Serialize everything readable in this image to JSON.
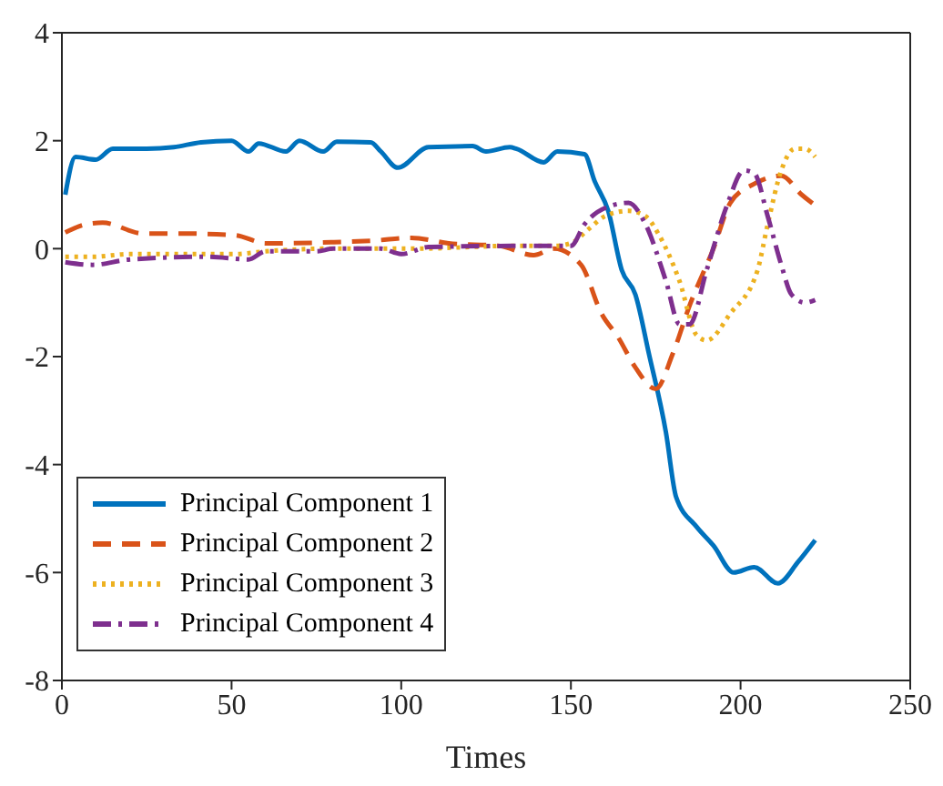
{
  "chart_data": {
    "type": "line",
    "xlabel": "Times",
    "xlim": [
      0,
      250
    ],
    "xticks": [
      0,
      50,
      100,
      150,
      200,
      250
    ],
    "ylim": [
      -8,
      4
    ],
    "yticks": [
      -8,
      -6,
      -4,
      -2,
      0,
      2,
      4
    ],
    "legend": "bottom left",
    "marker": "none",
    "series": [
      {
        "name": "Principal Component 1",
        "color": "#0072bd",
        "line_style": "solid",
        "x": [
          1,
          4,
          10,
          15,
          25,
          33,
          41,
          50,
          55,
          58,
          66,
          70,
          77,
          81,
          91,
          94,
          99,
          108,
          121,
          125,
          132,
          134,
          142,
          146,
          154,
          157,
          161,
          165,
          169,
          173,
          178,
          181,
          187,
          192,
          198,
          204,
          211,
          217,
          222
        ],
        "values": [
          1.0,
          1.7,
          1.65,
          1.85,
          1.85,
          1.88,
          1.97,
          2.0,
          1.8,
          1.95,
          1.8,
          2.0,
          1.8,
          1.98,
          1.97,
          1.8,
          1.5,
          1.88,
          1.9,
          1.8,
          1.88,
          1.85,
          1.6,
          1.8,
          1.75,
          1.25,
          0.7,
          -0.4,
          -0.85,
          -1.95,
          -3.4,
          -4.6,
          -5.15,
          -5.5,
          -6.0,
          -5.9,
          -6.2,
          -5.8,
          -5.4
        ]
      },
      {
        "name": "Principal Component 2",
        "color": "#d95319",
        "line_style": "dashed",
        "x": [
          1,
          7,
          12,
          24,
          35,
          51,
          60,
          65,
          80,
          92,
          103,
          114,
          129,
          139,
          145,
          153,
          159,
          164,
          169,
          175,
          180,
          185,
          192,
          197,
          204,
          212,
          218,
          222
        ],
        "values": [
          0.3,
          0.45,
          0.48,
          0.28,
          0.28,
          0.25,
          0.1,
          0.1,
          0.12,
          0.15,
          0.2,
          0.1,
          0.05,
          -0.12,
          0.0,
          -0.3,
          -1.2,
          -1.65,
          -2.2,
          -2.6,
          -1.95,
          -1.05,
          0.0,
          0.85,
          1.2,
          1.35,
          1.0,
          0.8
        ]
      },
      {
        "name": "Principal Component 3",
        "color": "#edb120",
        "line_style": "dotted",
        "x": [
          1,
          9,
          20,
          51,
          60,
          78,
          104,
          132,
          145,
          150,
          155,
          160,
          167,
          172,
          176,
          182,
          187,
          190,
          197,
          205,
          208,
          212,
          216,
          219,
          222
        ],
        "values": [
          -0.15,
          -0.15,
          -0.1,
          -0.1,
          -0.05,
          0.0,
          0.0,
          0.05,
          0.05,
          0.1,
          0.35,
          0.6,
          0.7,
          0.6,
          0.25,
          -0.6,
          -1.6,
          -1.7,
          -1.2,
          -0.4,
          0.45,
          1.45,
          1.85,
          1.85,
          1.7
        ]
      },
      {
        "name": "Principal Component 4",
        "color": "#7e2f8e",
        "line_style": "dashdot",
        "x": [
          1,
          9,
          20,
          43,
          55,
          60,
          75,
          80,
          94,
          100,
          108,
          132,
          150,
          154,
          162,
          167,
          172,
          178,
          182,
          185,
          190,
          196,
          201,
          204,
          208,
          212,
          215,
          219,
          222
        ],
        "values": [
          -0.25,
          -0.3,
          -0.2,
          -0.15,
          -0.2,
          -0.05,
          -0.05,
          0.0,
          0.0,
          -0.1,
          0.03,
          0.05,
          0.05,
          0.45,
          0.8,
          0.85,
          0.45,
          -0.6,
          -1.4,
          -1.4,
          -0.4,
          0.8,
          1.45,
          1.4,
          0.6,
          -0.3,
          -0.85,
          -1.0,
          -0.95
        ]
      }
    ]
  }
}
